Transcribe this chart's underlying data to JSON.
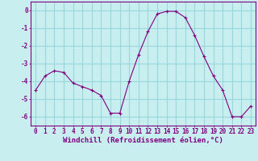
{
  "x": [
    0,
    1,
    2,
    3,
    4,
    5,
    6,
    7,
    8,
    9,
    10,
    11,
    12,
    13,
    14,
    15,
    16,
    17,
    18,
    19,
    20,
    21,
    22,
    23
  ],
  "y": [
    -4.5,
    -3.7,
    -3.4,
    -3.5,
    -4.1,
    -4.3,
    -4.5,
    -4.8,
    -5.8,
    -5.8,
    -4.0,
    -2.5,
    -1.2,
    -0.2,
    -0.05,
    -0.05,
    -0.4,
    -1.4,
    -2.6,
    -3.7,
    -4.5,
    -6.0,
    -6.0,
    -5.4
  ],
  "line_color": "#800080",
  "marker_color": "#800080",
  "bg_color": "#c8eef0",
  "grid_color": "#98d8dc",
  "text_color": "#800080",
  "xlabel": "Windchill (Refroidissement éolien,°C)",
  "ylim": [
    -6.5,
    0.5
  ],
  "yticks": [
    0,
    -1,
    -2,
    -3,
    -4,
    -5,
    -6
  ],
  "xlim": [
    -0.5,
    23.5
  ],
  "tick_fontsize": 5.5,
  "label_fontsize": 6.5
}
